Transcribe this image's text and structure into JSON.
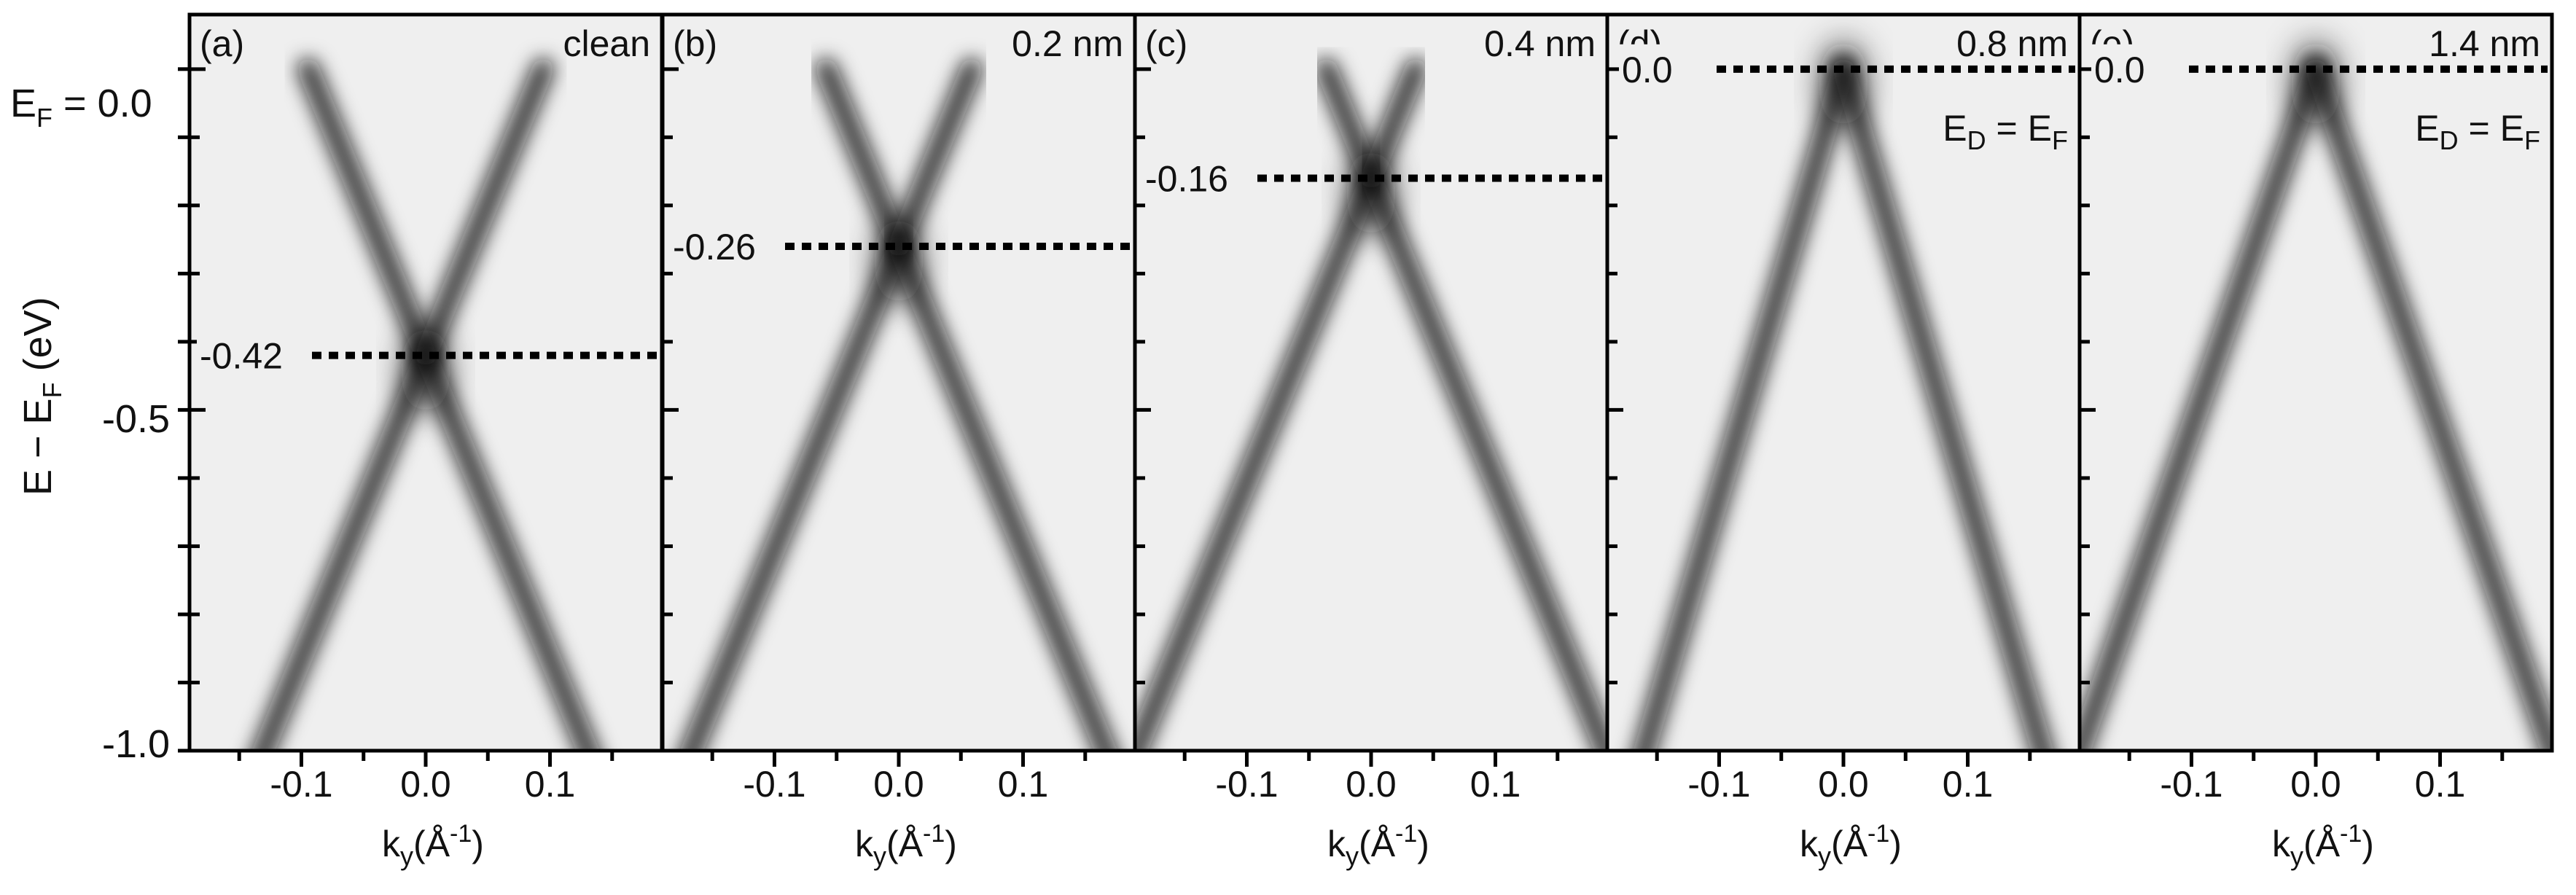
{
  "chart_data": [
    {
      "type": "heatmap",
      "panel_label": "(a)",
      "condition": "clean",
      "xlabel": "k_y(Å^-1)",
      "ylabel": "E − E_F (eV)",
      "ylabel_ticks": [
        "E_F = 0.0",
        "-0.5",
        "-1.0"
      ],
      "x_ticks": [
        "-0.1",
        "0.0",
        "0.1"
      ],
      "xlim": [
        -0.19,
        0.19
      ],
      "ylim": [
        -1.0,
        0.08
      ],
      "dirac_point_energy": -0.42,
      "dirac_label": "-0.42",
      "dirac_k": 0.0,
      "band_velocity_k_per_eV": 0.225,
      "band_top_energy": 0.0
    },
    {
      "type": "heatmap",
      "panel_label": "(b)",
      "condition": "0.2 nm",
      "xlabel": "k_y(Å^-1)",
      "x_ticks": [
        "-0.1",
        "0.0",
        "0.1"
      ],
      "xlim": [
        -0.19,
        0.19
      ],
      "ylim": [
        -1.0,
        0.08
      ],
      "dirac_point_energy": -0.26,
      "dirac_label": "-0.26",
      "dirac_k": 0.0,
      "band_velocity_k_per_eV": 0.225,
      "band_top_energy": 0.0
    },
    {
      "type": "heatmap",
      "panel_label": "(c)",
      "condition": "0.4 nm",
      "xlabel": "k_y(Å^-1)",
      "x_ticks": [
        "-0.1",
        "0.0",
        "0.1"
      ],
      "xlim": [
        -0.19,
        0.19
      ],
      "ylim": [
        -1.0,
        0.08
      ],
      "dirac_point_energy": -0.16,
      "dirac_label": "-0.16",
      "dirac_k": 0.0,
      "band_velocity_k_per_eV": 0.225,
      "band_top_energy": 0.0
    },
    {
      "type": "heatmap",
      "panel_label": "(d)",
      "condition": "0.8 nm",
      "xlabel": "k_y(Å^-1)",
      "x_ticks": [
        "-0.1",
        "0.0",
        "0.1"
      ],
      "xlim": [
        -0.19,
        0.19
      ],
      "ylim": [
        -1.0,
        0.08
      ],
      "dirac_point_energy": 0.0,
      "dirac_label": "0.0",
      "ed_label": "E_D = E_F",
      "dirac_k": 0.0,
      "band_velocity_k_per_eV": 0.16,
      "band_top_energy": 0.0
    },
    {
      "type": "heatmap",
      "panel_label": "(e)",
      "condition": "1.4 nm",
      "xlabel": "k_y(Å^-1)",
      "x_ticks": [
        "-0.1",
        "0.0",
        "0.1"
      ],
      "xlim": [
        -0.19,
        0.19
      ],
      "ylim": [
        -1.0,
        0.08
      ],
      "dirac_point_energy": 0.0,
      "dirac_label": "0.0",
      "ed_label": "E_D = E_F",
      "dirac_k": 0.0,
      "band_velocity_k_per_eV": 0.19,
      "band_top_energy": 0.0
    }
  ],
  "colors": {
    "background": "#efefef",
    "band": "#141414",
    "frame": "#000000"
  }
}
